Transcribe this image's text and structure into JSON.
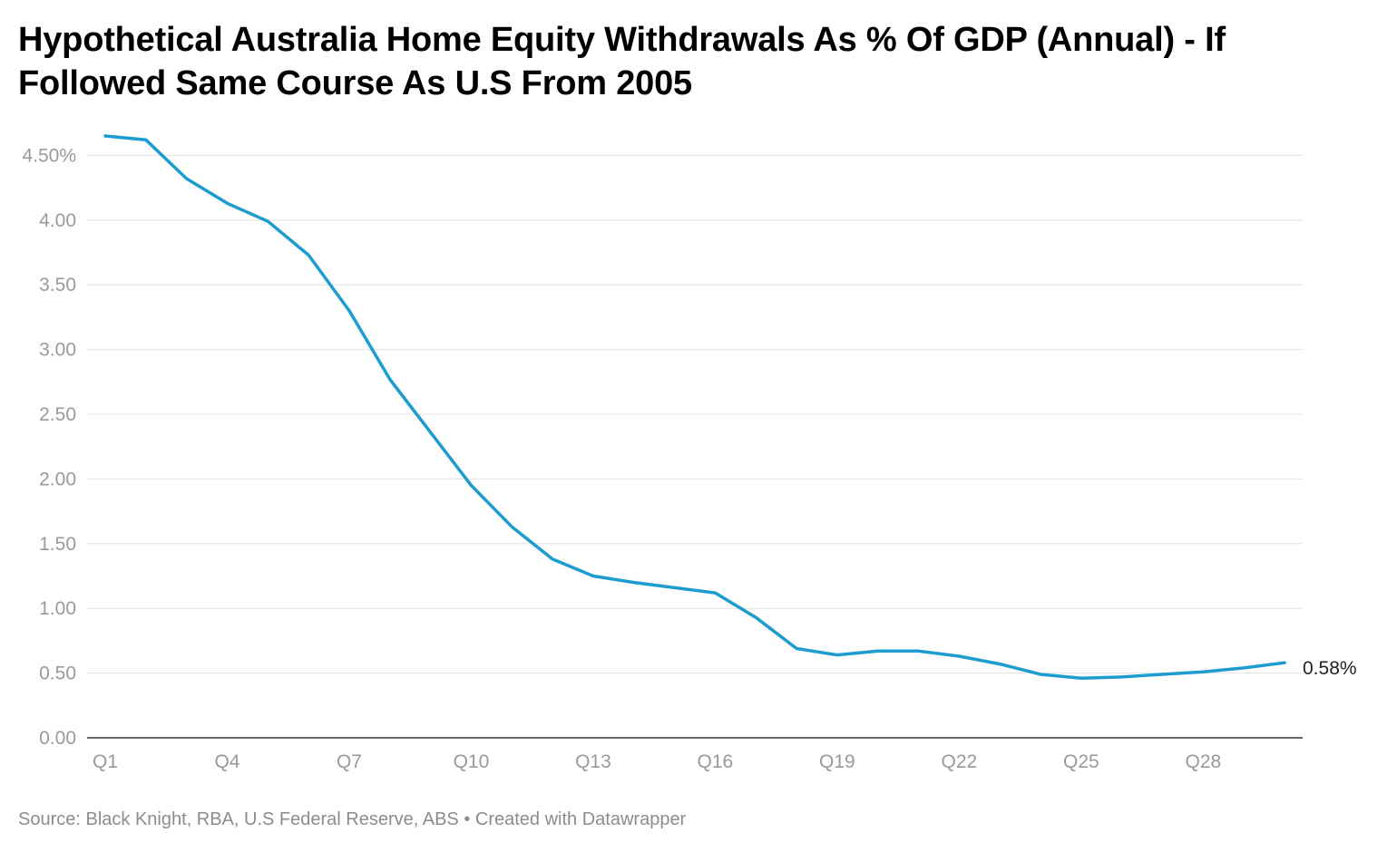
{
  "chart_data": {
    "type": "line",
    "title": "Hypothetical Australia Home Equity Withdrawals As % Of GDP (Annual) - If Followed Same Course As U.S From 2005",
    "xlabel": "",
    "ylabel": "",
    "categories": [
      "Q1",
      "Q2",
      "Q3",
      "Q4",
      "Q5",
      "Q6",
      "Q7",
      "Q8",
      "Q9",
      "Q10",
      "Q11",
      "Q12",
      "Q13",
      "Q14",
      "Q15",
      "Q16",
      "Q17",
      "Q18",
      "Q19",
      "Q20",
      "Q21",
      "Q22",
      "Q23",
      "Q24",
      "Q25",
      "Q26",
      "Q27",
      "Q28",
      "Q29",
      "Q30"
    ],
    "x_tick_labels": [
      "Q1",
      "Q4",
      "Q7",
      "Q10",
      "Q13",
      "Q16",
      "Q19",
      "Q22",
      "Q25",
      "Q28"
    ],
    "y_ticks": [
      0,
      0.5,
      1.0,
      1.5,
      2.0,
      2.5,
      3.0,
      3.5,
      4.0,
      4.5
    ],
    "y_tick_labels": [
      "0.00",
      "0.50",
      "1.00",
      "1.50",
      "2.00",
      "2.50",
      "3.00",
      "3.50",
      "4.00",
      "4.50%"
    ],
    "ylim": [
      0,
      4.65
    ],
    "grid": true,
    "series": [
      {
        "name": "Home equity withdrawals % of GDP",
        "color": "#1d9ccf",
        "values": [
          4.65,
          4.62,
          4.32,
          4.13,
          3.99,
          3.73,
          3.3,
          2.77,
          2.36,
          1.95,
          1.63,
          1.38,
          1.25,
          1.2,
          1.16,
          1.12,
          0.93,
          0.69,
          0.64,
          0.67,
          0.67,
          0.63,
          0.57,
          0.49,
          0.46,
          0.47,
          0.49,
          0.51,
          0.54,
          0.58
        ]
      }
    ],
    "end_label": "0.58%"
  },
  "footer": {
    "source": "Source: Black Knight, RBA, U.S Federal Reserve, ABS • Created with Datawrapper"
  }
}
